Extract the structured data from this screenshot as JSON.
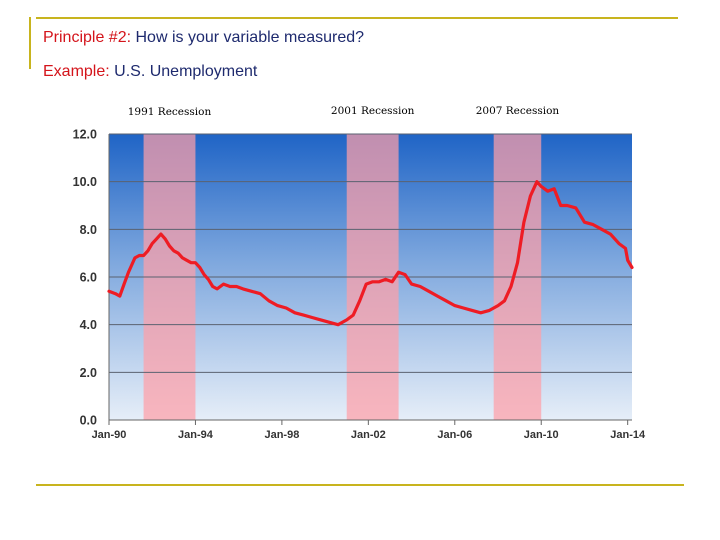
{
  "slide": {
    "principle_prefix": "Principle #2:",
    "principle_text": "How is your variable measured?",
    "example_prefix": "Example:",
    "example_text": "U.S. Unemployment"
  },
  "colors": {
    "accent_rule": "#c8b41e",
    "heading_red": "#d4141b",
    "heading_navy": "#1e2a6e",
    "series_line": "#ee1c24",
    "recession_shade": "#ffa0a8",
    "plot_top": "#1f64c6",
    "plot_bottom": "#e6eef8"
  },
  "chart_data": {
    "type": "line",
    "title": "",
    "xlabel": "",
    "ylabel": "",
    "xlim": [
      1990.0,
      2014.2
    ],
    "ylim": [
      0,
      12
    ],
    "y_ticks": [
      "0.0",
      "2.0",
      "4.0",
      "6.0",
      "8.0",
      "10.0",
      "12.0"
    ],
    "x_ticks": [
      {
        "label": "Jan-90",
        "x": 1990.0
      },
      {
        "label": "Jan-94",
        "x": 1994.0
      },
      {
        "label": "Jan-98",
        "x": 1998.0
      },
      {
        "label": "Jan-02",
        "x": 2002.0
      },
      {
        "label": "Jan-06",
        "x": 2006.0
      },
      {
        "label": "Jan-10",
        "x": 2010.0
      },
      {
        "label": "Jan-14",
        "x": 2014.0
      }
    ],
    "grid": true,
    "recessions": [
      {
        "label": "1991 Recession",
        "start": 1991.6,
        "end": 1994.0
      },
      {
        "label": "2001 Recession",
        "start": 2001.0,
        "end": 2003.4
      },
      {
        "label": "2007  Recession",
        "start": 2007.8,
        "end": 2010.0
      }
    ],
    "series": [
      {
        "x": [
          1990.0,
          1990.3,
          1990.5,
          1990.7,
          1990.9,
          1991.0,
          1991.2,
          1991.4,
          1991.6,
          1991.8,
          1992.0,
          1992.2,
          1992.4,
          1992.6,
          1992.8,
          1993.0,
          1993.2,
          1993.4,
          1993.6,
          1993.8,
          1994.0,
          1994.2,
          1994.4,
          1994.6,
          1994.8,
          1995.0,
          1995.3,
          1995.6,
          1995.9,
          1996.2,
          1996.6,
          1997.0,
          1997.4,
          1997.8,
          1998.2,
          1998.6,
          1999.0,
          1999.4,
          1999.8,
          2000.2,
          2000.6,
          2001.0,
          2001.3,
          2001.6,
          2001.9,
          2002.2,
          2002.5,
          2002.8,
          2003.1,
          2003.4,
          2003.7,
          2004.0,
          2004.4,
          2004.8,
          2005.2,
          2005.6,
          2006.0,
          2006.4,
          2006.8,
          2007.2,
          2007.6,
          2008.0,
          2008.3,
          2008.6,
          2008.9,
          2009.2,
          2009.5,
          2009.8,
          2010.0,
          2010.3,
          2010.6,
          2010.9,
          2011.2,
          2011.6,
          2012.0,
          2012.4,
          2012.8,
          2013.2,
          2013.6,
          2013.9,
          2014.0,
          2014.2
        ],
        "values": [
          5.4,
          5.3,
          5.2,
          5.7,
          6.2,
          6.4,
          6.8,
          6.9,
          6.9,
          7.1,
          7.4,
          7.6,
          7.8,
          7.6,
          7.3,
          7.1,
          7.0,
          6.8,
          6.7,
          6.6,
          6.6,
          6.4,
          6.1,
          5.9,
          5.6,
          5.5,
          5.7,
          5.6,
          5.6,
          5.5,
          5.4,
          5.3,
          5.0,
          4.8,
          4.7,
          4.5,
          4.4,
          4.3,
          4.2,
          4.1,
          4.0,
          4.2,
          4.4,
          5.0,
          5.7,
          5.8,
          5.8,
          5.9,
          5.8,
          6.2,
          6.1,
          5.7,
          5.6,
          5.4,
          5.2,
          5.0,
          4.8,
          4.7,
          4.6,
          4.5,
          4.6,
          4.8,
          5.0,
          5.6,
          6.6,
          8.3,
          9.4,
          10.0,
          9.8,
          9.6,
          9.7,
          9.0,
          9.0,
          8.9,
          8.3,
          8.2,
          8.0,
          7.8,
          7.4,
          7.2,
          6.7,
          6.4
        ]
      }
    ]
  }
}
